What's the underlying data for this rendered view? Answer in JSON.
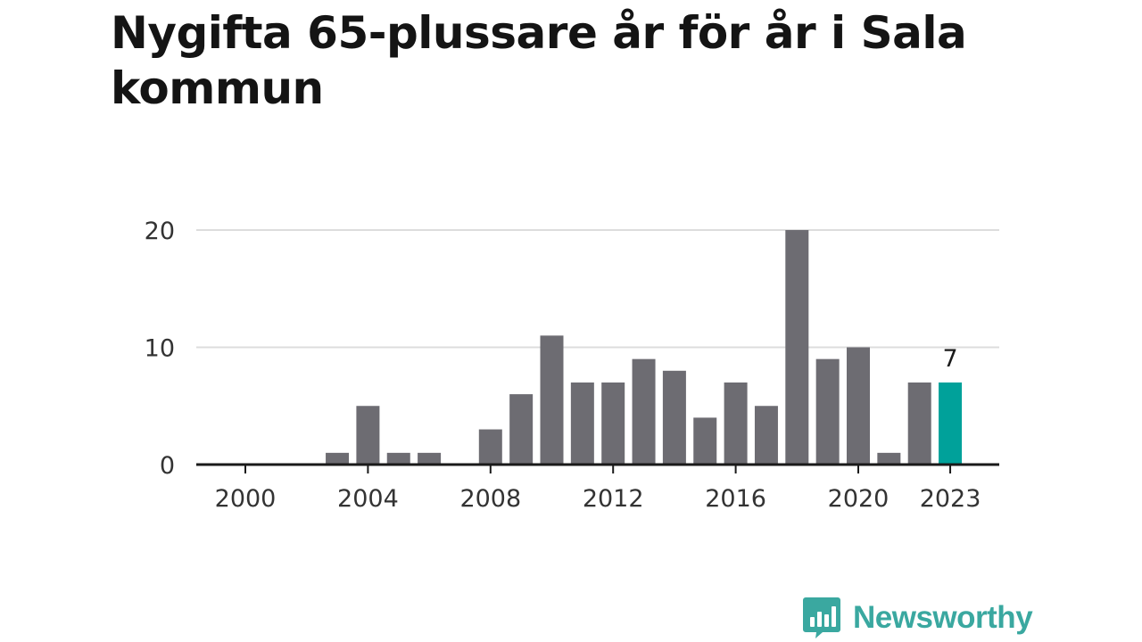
{
  "title": "Nygifta 65-plussare år för år i Sala kommun",
  "brand": {
    "name": "Newsworthy",
    "icon": "newsworthy-logo-icon",
    "color": "#3aa8a0"
  },
  "chart_data": {
    "type": "bar",
    "title": "Nygifta 65-plussare år för år i Sala kommun",
    "xlabel": "",
    "ylabel": "",
    "x": [
      2000,
      2001,
      2002,
      2003,
      2004,
      2005,
      2006,
      2007,
      2008,
      2009,
      2010,
      2011,
      2012,
      2013,
      2014,
      2015,
      2016,
      2017,
      2018,
      2019,
      2020,
      2021,
      2022,
      2023
    ],
    "values": [
      0,
      0,
      0,
      1,
      5,
      1,
      1,
      0,
      3,
      6,
      11,
      7,
      7,
      9,
      8,
      4,
      7,
      5,
      20,
      9,
      10,
      1,
      7,
      7
    ],
    "ylim": [
      0,
      20
    ],
    "yticks": [
      0,
      10,
      20
    ],
    "xticks": [
      2000,
      2004,
      2008,
      2012,
      2016,
      2020,
      2023
    ],
    "highlight": {
      "x": 2023,
      "label": "7"
    },
    "grid": true,
    "colors": {
      "bar": "#6d6c72",
      "highlight": "#00a19a",
      "grid": "#dddddd",
      "axis": "#1a1a1a"
    }
  }
}
